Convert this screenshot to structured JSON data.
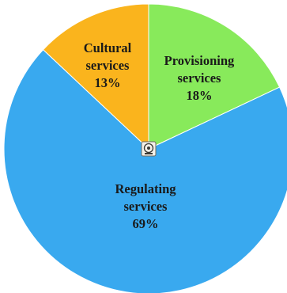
{
  "chart_data": {
    "type": "pie",
    "title": "",
    "start_angle_deg": 0,
    "direction": "clockwise",
    "slices": [
      {
        "key": "provisioning",
        "lines": [
          "Provisioning",
          "services",
          "18%"
        ],
        "value": 18,
        "color": "#88ea5b"
      },
      {
        "key": "regulating",
        "lines": [
          "Regulating",
          "services",
          "69%"
        ],
        "value": 69,
        "color": "#39a9ef"
      },
      {
        "key": "cultural",
        "lines": [
          "Cultural",
          "services",
          "13%"
        ],
        "value": 13,
        "color": "#fab41d"
      }
    ]
  },
  "logo": {
    "icon": "emblem-icon"
  }
}
